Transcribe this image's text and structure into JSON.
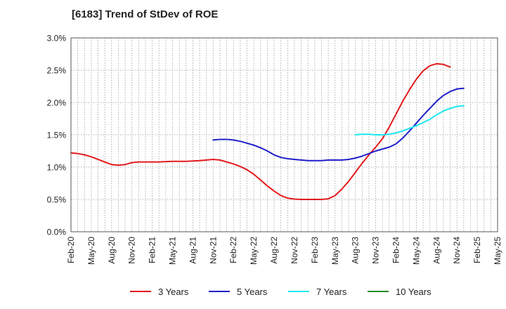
{
  "chart_data": {
    "type": "line",
    "title": "[6183]  Trend of StDev of ROE",
    "xlabel": "",
    "ylabel": "",
    "x_labels": [
      "Feb-20",
      "May-20",
      "Aug-20",
      "Nov-20",
      "Feb-21",
      "May-21",
      "Aug-21",
      "Nov-21",
      "Feb-22",
      "May-22",
      "Aug-22",
      "Nov-22",
      "Feb-23",
      "May-23",
      "Aug-23",
      "Nov-23",
      "Feb-24",
      "May-24",
      "Aug-24",
      "Nov-24",
      "Feb-25",
      "May-25"
    ],
    "y_tick_labels": [
      "0.0%",
      "0.5%",
      "1.0%",
      "1.5%",
      "2.0%",
      "2.5%",
      "3.0%"
    ],
    "ylim": [
      0,
      3.0
    ],
    "grid": true,
    "legend_position": "bottom",
    "series": [
      {
        "name": "3 Years",
        "color": "#e31a1c",
        "start_index": 0,
        "values": [
          1.22,
          1.21,
          1.19,
          1.16,
          1.12,
          1.08,
          1.04,
          1.03,
          1.04,
          1.07,
          1.08,
          1.08,
          1.08,
          1.08,
          1.085,
          1.09,
          1.09,
          1.09,
          1.095,
          1.1,
          1.11,
          1.12,
          1.11,
          1.08,
          1.05,
          1.01,
          0.96,
          0.89,
          0.8,
          0.71,
          0.63,
          0.56,
          0.52,
          0.505,
          0.5,
          0.5,
          0.5,
          0.5,
          0.51,
          0.56,
          0.66,
          0.78,
          0.92,
          1.06,
          1.19,
          1.31,
          1.44,
          1.62,
          1.82,
          2.02,
          2.2,
          2.36,
          2.49,
          2.57,
          2.6,
          2.59,
          2.55
        ]
      },
      {
        "name": "5 Years",
        "color": "#1f1fcc",
        "start_index": 21,
        "values": [
          1.42,
          1.43,
          1.43,
          1.42,
          1.4,
          1.37,
          1.34,
          1.3,
          1.25,
          1.19,
          1.15,
          1.13,
          1.12,
          1.11,
          1.1,
          1.1,
          1.1,
          1.11,
          1.11,
          1.11,
          1.12,
          1.14,
          1.17,
          1.21,
          1.25,
          1.28,
          1.31,
          1.36,
          1.45,
          1.56,
          1.68,
          1.8,
          1.91,
          2.02,
          2.11,
          2.17,
          2.21,
          2.22
        ]
      },
      {
        "name": "7 Years",
        "color": "#1ee8f0",
        "start_index": 42,
        "values": [
          1.5,
          1.51,
          1.51,
          1.5,
          1.5,
          1.51,
          1.53,
          1.56,
          1.6,
          1.64,
          1.69,
          1.74,
          1.81,
          1.87,
          1.91,
          1.94,
          1.95
        ]
      },
      {
        "name": "10 Years",
        "color": "#228b22",
        "start_index": 57,
        "values": []
      }
    ]
  }
}
